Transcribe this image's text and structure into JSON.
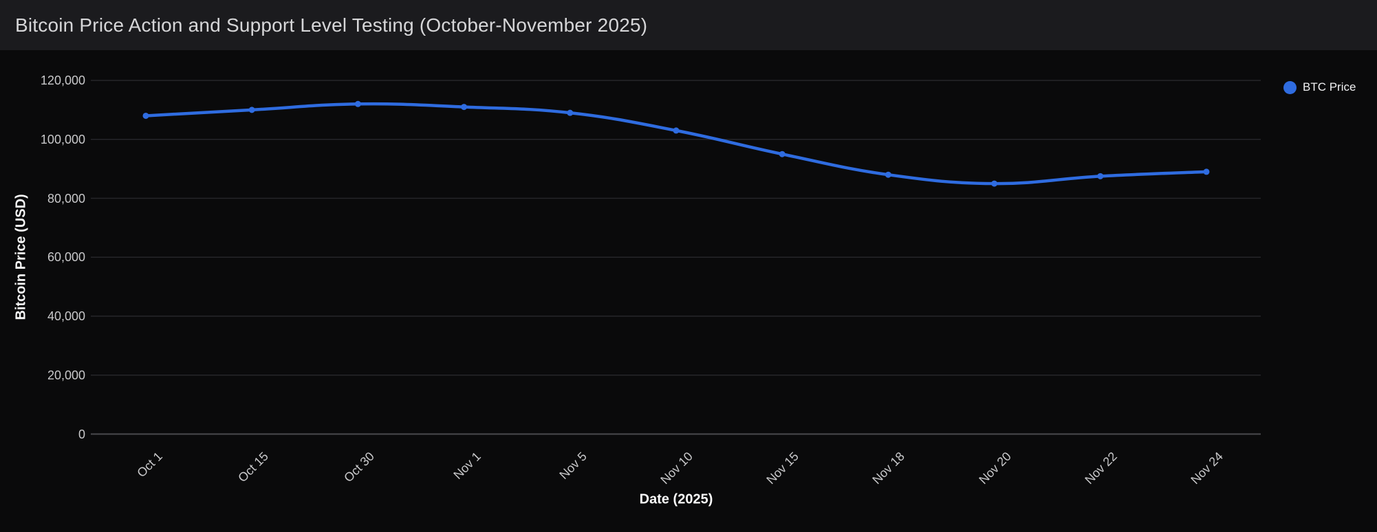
{
  "header": {
    "title": "Bitcoin Price Action and Support Level Testing (October-November 2025)"
  },
  "legend": {
    "label": "BTC Price",
    "color": "#2f6ce0"
  },
  "colors": {
    "header_bg": "#1b1b1e",
    "chart_bg": "#0a0a0b",
    "line": "#2f6ce0",
    "gridline": "#26262a",
    "zero_axis_line": "#4a4a4e",
    "tick_text": "#c9c9cb",
    "axis_title_text": "#fafafa"
  },
  "chart_data": {
    "type": "line",
    "title": "Bitcoin Price Action and Support Level Testing (October-November 2025)",
    "xlabel": "Date (2025)",
    "ylabel": "Bitcoin Price (USD)",
    "categories": [
      "Oct 1",
      "Oct 15",
      "Oct 30",
      "Nov 1",
      "Nov 5",
      "Nov 10",
      "Nov 15",
      "Nov 18",
      "Nov 20",
      "Nov 22",
      "Nov 24"
    ],
    "series": [
      {
        "name": "BTC Price",
        "color": "#2f6ce0",
        "values": [
          108000,
          110000,
          112000,
          111000,
          109000,
          103000,
          95000,
          88000,
          85000,
          87500,
          89000
        ]
      }
    ],
    "ylim": [
      0,
      120000
    ],
    "ytick_step": 20000,
    "ytick_labels": [
      "0",
      "20,000",
      "40,000",
      "60,000",
      "80,000",
      "100,000",
      "120,000"
    ],
    "grid": true,
    "legend_position": "top-right",
    "marker": "circle",
    "smooth": true
  }
}
